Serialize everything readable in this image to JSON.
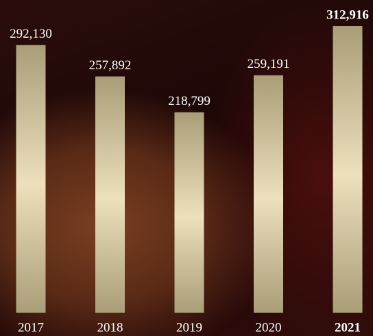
{
  "chart_data": {
    "type": "bar",
    "categories": [
      "2017",
      "2018",
      "2019",
      "2020",
      "2021"
    ],
    "values": [
      292130,
      257892,
      218799,
      259191,
      312916
    ],
    "value_labels": [
      "292,130",
      "257,892",
      "218,799",
      "259,191",
      "312,916"
    ],
    "color": "#ede0bd",
    "edge_color": "#a99e78",
    "highlight_last": true
  }
}
